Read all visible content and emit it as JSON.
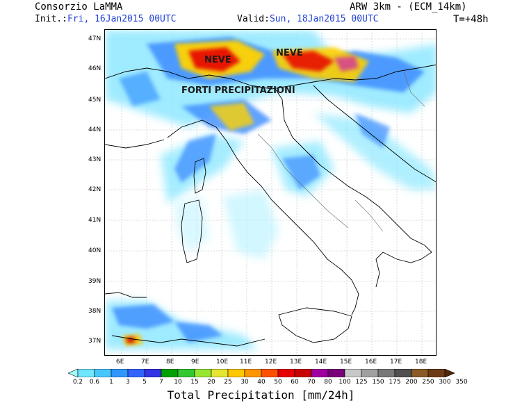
{
  "header": {
    "org": "Consorzio LaMMA",
    "model": "ARW 3km - (ECM_14km)",
    "init_label": "Init.:",
    "init_value": "Fri, 16Jan2015 00UTC",
    "valid_label": "Valid:",
    "valid_value": "Sun, 18Jan2015 00UTC",
    "lead_time": "T=+48h"
  },
  "map": {
    "lat_labels": [
      "47N",
      "46N",
      "45N",
      "44N",
      "43N",
      "42N",
      "41N",
      "40N",
      "39N",
      "38N",
      "37N"
    ],
    "lon_labels": [
      "6E",
      "7E",
      "8E",
      "9E",
      "10E",
      "11E",
      "12E",
      "13E",
      "14E",
      "15E",
      "16E",
      "17E",
      "18E"
    ],
    "annotations": {
      "neve_west": "NEVE",
      "neve_east": "NEVE",
      "forti": "FORTI PRECIPITAZIONI"
    }
  },
  "colorbar": {
    "title": "Total Precipitation [mm/24h]",
    "labels": [
      "0.2",
      "0.6",
      "1",
      "3",
      "5",
      "7",
      "10",
      "15",
      "20",
      "25",
      "30",
      "40",
      "50",
      "60",
      "70",
      "80",
      "100",
      "125",
      "150",
      "175",
      "200",
      "250",
      "300",
      "350"
    ],
    "colors": [
      "#a0ffff",
      "#6ee6ff",
      "#46c8ff",
      "#3296ff",
      "#3264ff",
      "#3232e6",
      "#00a000",
      "#32c832",
      "#96e632",
      "#e6e632",
      "#ffc800",
      "#ff9600",
      "#ff5000",
      "#e60000",
      "#c80000",
      "#a000a0",
      "#780078",
      "#c8c8c8",
      "#a0a0a0",
      "#787878",
      "#505050",
      "#8c5a28",
      "#6e3c14",
      "#502808"
    ]
  }
}
